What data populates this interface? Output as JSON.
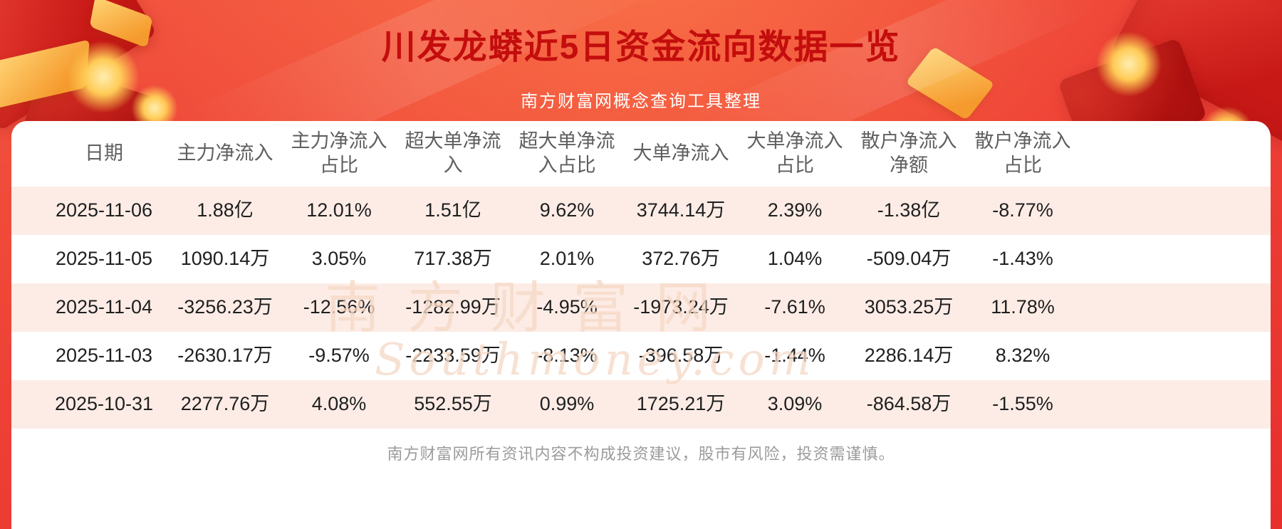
{
  "header": {
    "title": "川发龙蟒近5日资金流向数据一览",
    "subtitle": "南方财富网概念查询工具整理"
  },
  "watermark": {
    "cn": "南方财富网",
    "en": "Southmoney.com"
  },
  "table": {
    "columns": [
      "日期",
      "主力净流入",
      "主力净流入\n占比",
      "超大单净流\n入",
      "超大单净流\n入占比",
      "大单净流入",
      "大单净流入\n占比",
      "散户净流入\n净额",
      "散户净流入\n占比"
    ],
    "rows": [
      [
        "2025-11-06",
        "1.88亿",
        "12.01%",
        "1.51亿",
        "9.62%",
        "3744.14万",
        "2.39%",
        "-1.38亿",
        "-8.77%"
      ],
      [
        "2025-11-05",
        "1090.14万",
        "3.05%",
        "717.38万",
        "2.01%",
        "372.76万",
        "1.04%",
        "-509.04万",
        "-1.43%"
      ],
      [
        "2025-11-04",
        "-3256.23万",
        "-12.56%",
        "-1282.99万",
        "-4.95%",
        "-1973.24万",
        "-7.61%",
        "3053.25万",
        "11.78%"
      ],
      [
        "2025-11-03",
        "-2630.17万",
        "-9.57%",
        "-2233.59万",
        "-8.13%",
        "-396.58万",
        "-1.44%",
        "2286.14万",
        "8.32%"
      ],
      [
        "2025-10-31",
        "2277.76万",
        "4.08%",
        "552.55万",
        "0.99%",
        "1725.21万",
        "3.09%",
        "-864.58万",
        "-1.55%"
      ]
    ]
  },
  "footer": {
    "disclaimer": "南方财富网所有资讯内容不构成投资建议，股市有风险，投资需谨慎。"
  },
  "colors": {
    "banner_red": "#ee4136",
    "title_red": "#c40d0d",
    "row_pink": "#fdece6",
    "gold": "#f5a62d"
  },
  "chart_data": {
    "type": "table",
    "title": "川发龙蟒近5日资金流向数据一览",
    "columns": [
      "日期",
      "主力净流入",
      "主力净流入占比",
      "超大单净流入",
      "超大单净流入占比",
      "大单净流入",
      "大单净流入占比",
      "散户净流入净额",
      "散户净流入占比"
    ],
    "rows": [
      [
        "2025-11-06",
        "1.88亿",
        "12.01%",
        "1.51亿",
        "9.62%",
        "3744.14万",
        "2.39%",
        "-1.38亿",
        "-8.77%"
      ],
      [
        "2025-11-05",
        "1090.14万",
        "3.05%",
        "717.38万",
        "2.01%",
        "372.76万",
        "1.04%",
        "-509.04万",
        "-1.43%"
      ],
      [
        "2025-11-04",
        "-3256.23万",
        "-12.56%",
        "-1282.99万",
        "-4.95%",
        "-1973.24万",
        "-7.61%",
        "3053.25万",
        "11.78%"
      ],
      [
        "2025-11-03",
        "-2630.17万",
        "-9.57%",
        "-2233.59万",
        "-8.13%",
        "-396.58万",
        "-1.44%",
        "2286.14万",
        "8.32%"
      ],
      [
        "2025-10-31",
        "2277.76万",
        "4.08%",
        "552.55万",
        "0.99%",
        "1725.21万",
        "3.09%",
        "-864.58万",
        "-1.55%"
      ]
    ]
  }
}
